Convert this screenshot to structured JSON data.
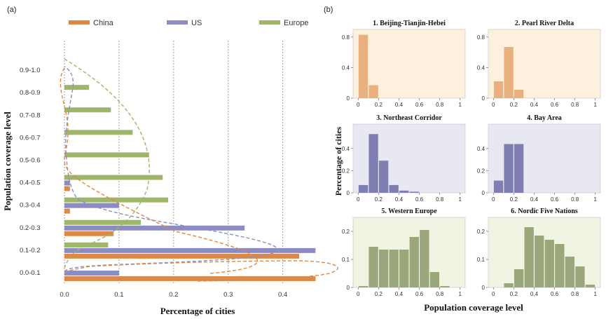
{
  "panel_a_letter": "(a)",
  "panel_b_letter": "(b)",
  "colors": {
    "China": "#dd8844",
    "US": "#8c8cc2",
    "Europe": "#9eb56a"
  },
  "chart_data": [
    {
      "type": "bar",
      "orientation": "horizontal",
      "title": "",
      "xlabel": "Percentage of cities",
      "ylabel": "Population coverage level",
      "categories": [
        "0.0-0.1",
        "0.1-0.2",
        "0.2-0.3",
        "0.3-0.4",
        "0.4-0.5",
        "0.5-0.6",
        "0.6-0.7",
        "0.7-0.8",
        "0.8-0.9",
        "0.9-1.0"
      ],
      "xlim": [
        0,
        0.48
      ],
      "xticks": [
        "0.0",
        "0.1",
        "0.2",
        "0.3",
        "0.4"
      ],
      "grid": "vertical dashed",
      "legend": "top",
      "series": [
        {
          "name": "China",
          "values": [
            0.46,
            0.43,
            0.09,
            0.01,
            0.01,
            0.0,
            0.0,
            0.0,
            0.0,
            0.0
          ]
        },
        {
          "name": "US",
          "values": [
            0.1,
            0.46,
            0.33,
            0.1,
            0.01,
            0.0,
            0.0,
            0.0,
            0.0,
            0.0
          ]
        },
        {
          "name": "Europe",
          "values": [
            0.0,
            0.08,
            0.14,
            0.19,
            0.18,
            0.155,
            0.125,
            0.085,
            0.045,
            0.0
          ]
        }
      ]
    },
    {
      "type": "bar",
      "title": "1. Beijing-Tianjin-Hebei",
      "color": "China",
      "x": [
        0.05,
        0.15,
        0.25,
        0.35,
        0.45,
        0.55,
        0.65,
        0.75,
        0.85,
        0.95
      ],
      "values": [
        0.83,
        0.17,
        0,
        0,
        0,
        0,
        0,
        0,
        0,
        0
      ],
      "xlim": [
        -0.05,
        1.05
      ],
      "ylim": [
        0,
        0.9
      ],
      "yticks": [
        "0",
        "0.4",
        "0.8"
      ],
      "xticks": [
        "0",
        "0.2",
        "0.4",
        "0.6",
        "0.8",
        "1"
      ]
    },
    {
      "type": "bar",
      "title": "2. Pearl River Delta",
      "color": "China",
      "x": [
        0.05,
        0.15,
        0.25,
        0.35,
        0.45,
        0.55,
        0.65,
        0.75,
        0.85,
        0.95
      ],
      "values": [
        0.22,
        0.67,
        0.11,
        0,
        0,
        0,
        0,
        0,
        0,
        0
      ],
      "xlim": [
        -0.05,
        1.05
      ],
      "ylim": [
        0,
        0.9
      ],
      "yticks": [
        "0",
        "0.4",
        "0.8"
      ],
      "xticks": [
        "0",
        "0.2",
        "0.4",
        "0.6",
        "0.8",
        "1"
      ]
    },
    {
      "type": "bar",
      "title": "3. Northeast Corridor",
      "color": "US",
      "x": [
        0.05,
        0.15,
        0.25,
        0.35,
        0.45,
        0.55,
        0.65,
        0.75,
        0.85,
        0.95
      ],
      "values": [
        0.07,
        0.53,
        0.29,
        0.07,
        0.02,
        0.01,
        0,
        0,
        0,
        0
      ],
      "xlim": [
        -0.05,
        1.05
      ],
      "ylim": [
        0,
        0.62
      ],
      "yticks": [
        "0",
        "0.2",
        "0.4"
      ],
      "xticks": [
        "0",
        "0.2",
        "0.4",
        "0.6",
        "0.8",
        "1"
      ]
    },
    {
      "type": "bar",
      "title": "4. Bay Area",
      "color": "US",
      "x": [
        0.05,
        0.15,
        0.25,
        0.35,
        0.45,
        0.55,
        0.65,
        0.75,
        0.85,
        0.95
      ],
      "values": [
        0.11,
        0.44,
        0.44,
        0,
        0,
        0,
        0,
        0,
        0,
        0
      ],
      "xlim": [
        -0.05,
        1.05
      ],
      "ylim": [
        0,
        0.62
      ],
      "yticks": [
        "0",
        "0.2",
        "0.4"
      ],
      "xticks": [
        "0",
        "0.2",
        "0.4",
        "0.6",
        "0.8",
        "1"
      ]
    },
    {
      "type": "bar",
      "title": "5. Western Europe",
      "color": "Europe",
      "x": [
        0.05,
        0.15,
        0.25,
        0.35,
        0.45,
        0.55,
        0.65,
        0.75,
        0.85,
        0.95
      ],
      "values": [
        0.005,
        0.145,
        0.135,
        0.135,
        0.135,
        0.18,
        0.205,
        0.055,
        0.005,
        0
      ],
      "xlim": [
        -0.05,
        1.05
      ],
      "ylim": [
        0,
        0.25
      ],
      "yticks": [
        "0",
        "0.1",
        "0.2"
      ],
      "xticks": [
        "0",
        "0.2",
        "0.4",
        "0.6",
        "0.8",
        "1"
      ]
    },
    {
      "type": "bar",
      "title": "6. Nordic Five Nations",
      "color": "Europe",
      "x": [
        0.05,
        0.15,
        0.25,
        0.35,
        0.45,
        0.55,
        0.65,
        0.75,
        0.85,
        0.95
      ],
      "values": [
        0,
        0.015,
        0.065,
        0.215,
        0.185,
        0.17,
        0.155,
        0.11,
        0.075,
        0.01
      ],
      "xlim": [
        -0.05,
        1.05
      ],
      "ylim": [
        0,
        0.25
      ],
      "yticks": [
        "0",
        "0.1",
        "0.2"
      ],
      "xticks": [
        "0",
        "0.2",
        "0.4",
        "0.6",
        "0.8",
        "1"
      ]
    }
  ],
  "panel_b": {
    "ylabel": "Percentage of cities",
    "xlabel": "Population coverage level"
  }
}
